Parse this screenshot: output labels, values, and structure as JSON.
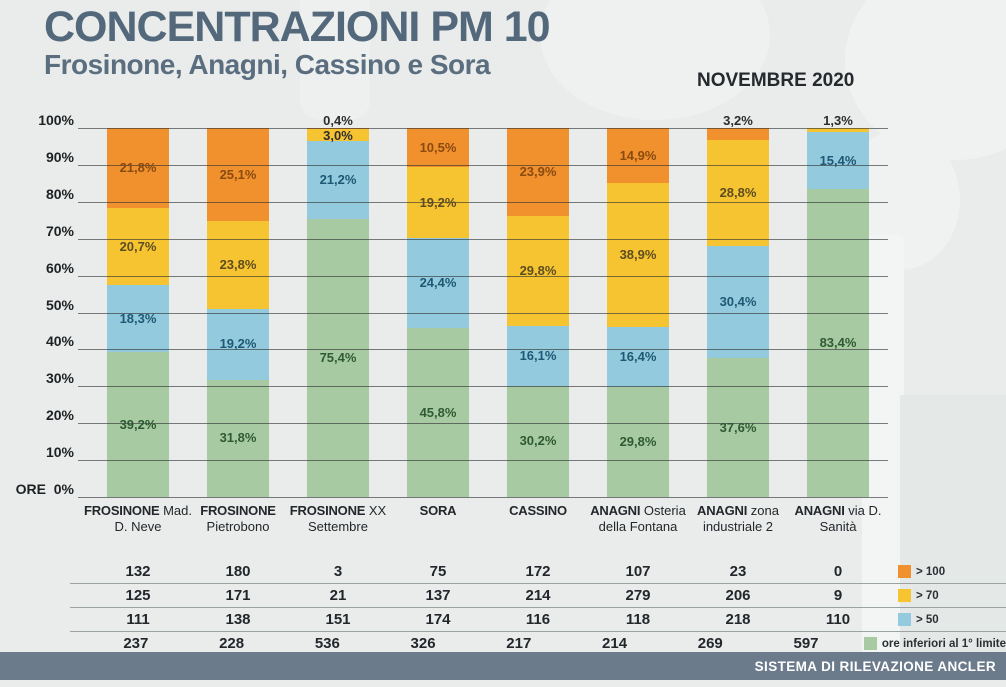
{
  "header": {
    "title": "CONCENTRAZIONI PM 10",
    "subtitle": "Frosinone, Anagni, Cassino e Sora",
    "period": "NOVEMBRE 2020"
  },
  "colors": {
    "orange": "#f0912d",
    "yellow": "#f6c431",
    "blue": "#93cadd",
    "green": "#a8caa2",
    "title_text": "#54687c",
    "footer_bar": "#6b7b8c"
  },
  "chart_data": {
    "type": "bar",
    "stacked": true,
    "title": "CONCENTRAZIONI PM 10 - Frosinone, Anagni, Cassino e Sora - NOVEMBRE 2020",
    "xlabel": "",
    "ylabel": "ORE",
    "ylim": [
      0,
      100
    ],
    "grid": true,
    "legend_position": "bottom-right",
    "y_axis": {
      "ticks": [
        "100%",
        "90%",
        "80%",
        "70%",
        "60%",
        "50%",
        "40%",
        "30%",
        "20%",
        "10%",
        "ORE  0%"
      ]
    },
    "categories": [
      {
        "name": "FROSINONE",
        "sub": "Mad. D. Neve"
      },
      {
        "name": "FROSINONE",
        "sub": "Pietrobono"
      },
      {
        "name": "FROSINONE",
        "sub": "XX Settembre"
      },
      {
        "name": "SORA",
        "sub": ""
      },
      {
        "name": "CASSINO",
        "sub": ""
      },
      {
        "name": "ANAGNI",
        "sub": "Osteria della Fontana"
      },
      {
        "name": "ANAGNI",
        "sub": "zona industriale 2"
      },
      {
        "name": "ANAGNI",
        "sub": "via D. Sanità"
      }
    ],
    "series": [
      {
        "name": "> 100",
        "color": "#f0912d",
        "label_color": "#8a4a10",
        "pct": [
          21.8,
          25.1,
          0.4,
          10.5,
          23.9,
          14.9,
          3.2,
          0
        ],
        "pct_labels": [
          "21,8%",
          "25,1%",
          "0,4%",
          "10,5%",
          "23,9%",
          "14,9%",
          "3,2%",
          ""
        ],
        "hours": [
          132,
          180,
          3,
          75,
          172,
          107,
          23,
          0
        ]
      },
      {
        "name": "> 70",
        "color": "#f6c431",
        "label_color": "#5d4d20",
        "pct": [
          20.7,
          23.8,
          3.0,
          19.2,
          29.8,
          38.9,
          28.8,
          1.3
        ],
        "pct_labels": [
          "20,7%",
          "23,8%",
          "3,0%",
          "19,2%",
          "29,8%",
          "38,9%",
          "28,8%",
          "1,3%"
        ],
        "hours": [
          125,
          171,
          21,
          137,
          214,
          279,
          206,
          9
        ]
      },
      {
        "name": "> 50",
        "color": "#93cadd",
        "label_color": "#1d5874",
        "pct": [
          18.3,
          19.2,
          21.2,
          24.4,
          16.1,
          16.4,
          30.4,
          15.4
        ],
        "pct_labels": [
          "18,3%",
          "19,2%",
          "21,2%",
          "24,4%",
          "16,1%",
          "16,4%",
          "30,4%",
          "15,4%"
        ],
        "hours": [
          111,
          138,
          151,
          174,
          116,
          118,
          218,
          110
        ]
      },
      {
        "name": "ore inferiori al 1° limite",
        "color": "#a8caa2",
        "label_color": "#2e5a33",
        "pct": [
          39.2,
          31.8,
          75.4,
          45.8,
          30.2,
          29.8,
          37.6,
          83.4
        ],
        "pct_labels": [
          "39,2%",
          "31,8%",
          "75,4%",
          "45,8%",
          "30,2%",
          "29,8%",
          "37,6%",
          "83,4%"
        ],
        "hours": [
          237,
          228,
          536,
          326,
          217,
          214,
          269,
          597
        ]
      }
    ]
  },
  "footer": {
    "text": "SISTEMA DI RILEVAZIONE ANCLER"
  }
}
